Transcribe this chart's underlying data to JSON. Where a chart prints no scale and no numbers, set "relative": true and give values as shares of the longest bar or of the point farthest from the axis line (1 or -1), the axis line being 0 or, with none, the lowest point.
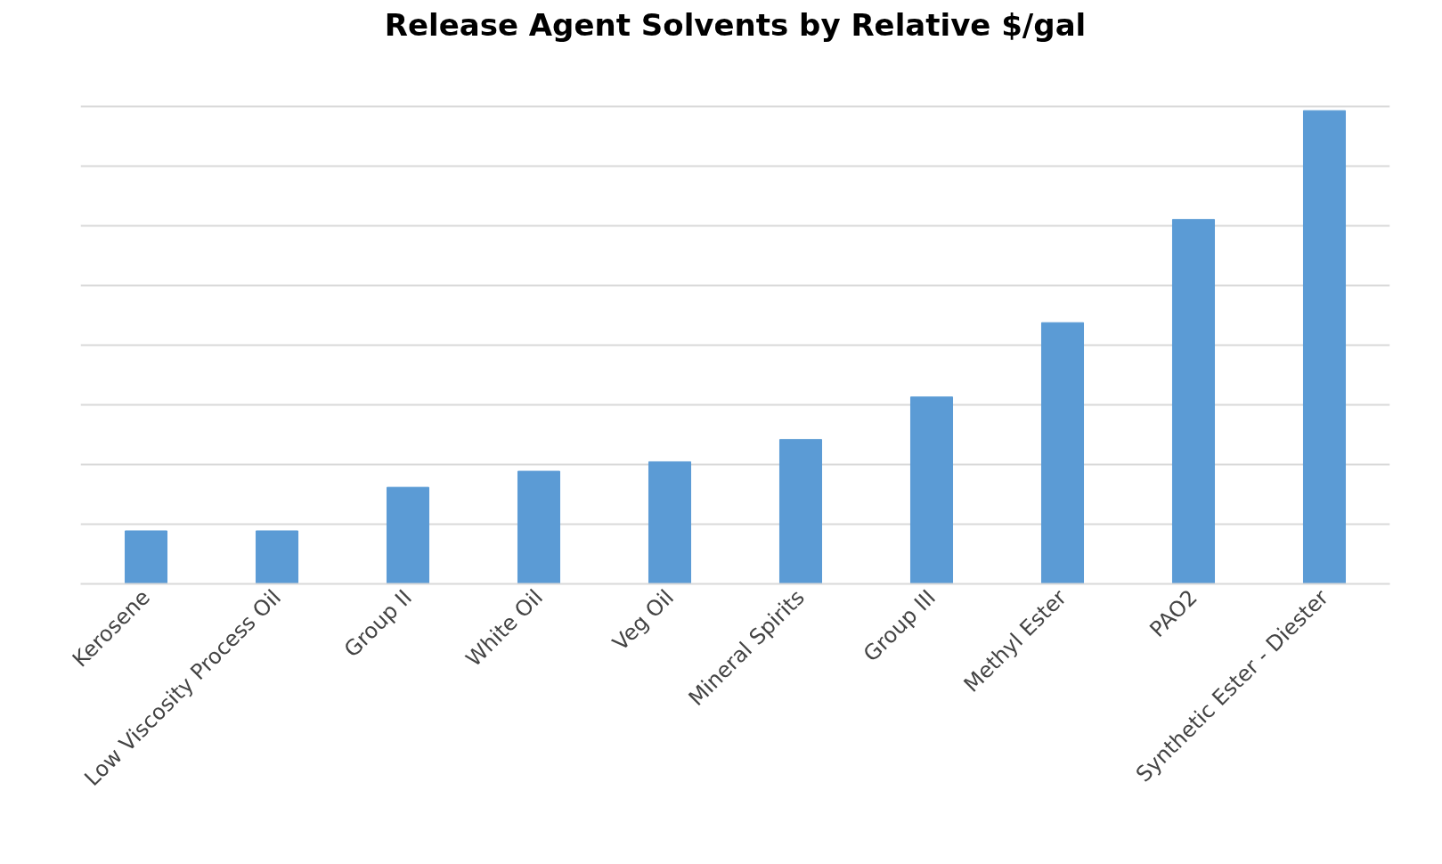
{
  "chart_data": {
    "type": "bar",
    "title": "Release Agent Solvents by Relative $/gal",
    "relative": true,
    "categories": [
      "Kerosene",
      "Low Viscosity Process Oil",
      "Group II",
      "White Oil",
      "Veg Oil",
      "Mineral Spirits",
      "Group III",
      "Methyl Ester",
      "PAO2",
      "Synthetic Ester - Diester"
    ],
    "values": [
      0.112,
      0.112,
      0.204,
      0.238,
      0.258,
      0.305,
      0.395,
      0.552,
      0.77,
      1
    ],
    "color": "#5b9bd5",
    "grid": "y"
  }
}
